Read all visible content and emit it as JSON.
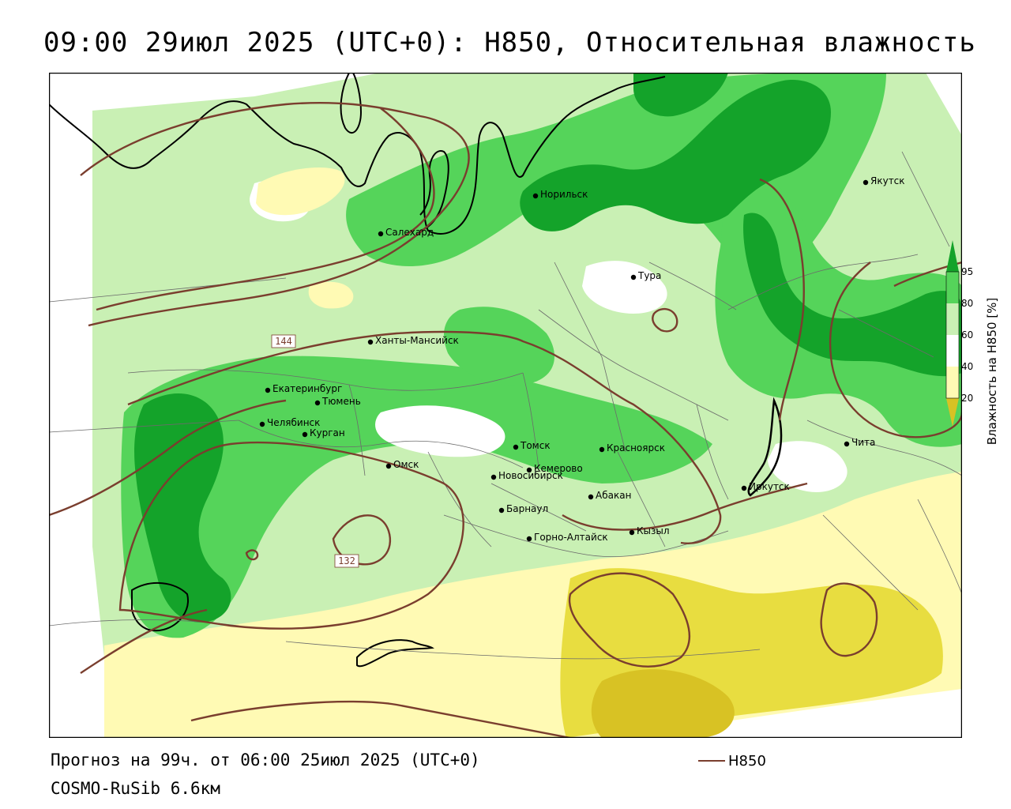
{
  "header": {
    "title": "09:00 29июл 2025 (UTC+0): H850, Относительная влажность"
  },
  "footer": {
    "forecast": "Прогноз на 99ч. от 06:00 25июл 2025 (UTC+0)",
    "model": "COSMO-RuSib 6.6км"
  },
  "legend": {
    "line_label": "H850",
    "line_color": "#7a3e2e"
  },
  "colorbar": {
    "title": "Влажность на H850 [%]",
    "ticks": [
      "20",
      "40",
      "60",
      "80",
      "95"
    ],
    "colors": {
      "below_20": "#d8c224",
      "r20_40": "#e8dd40",
      "r40_60": "#fffab4",
      "r60_80": "#c9f0b4",
      "r80_95": "#55d45a",
      "above_95": "#14a32a"
    }
  },
  "map": {
    "contour_labels": [
      "144",
      "132"
    ],
    "cities": [
      {
        "name": "Якутск"
      },
      {
        "name": "Норильск"
      },
      {
        "name": "Салехард"
      },
      {
        "name": "Тура"
      },
      {
        "name": "Ханты-Мансийск"
      },
      {
        "name": "Екатеринбург"
      },
      {
        "name": "Тюмень"
      },
      {
        "name": "Челябинск"
      },
      {
        "name": "Курган"
      },
      {
        "name": "Томск"
      },
      {
        "name": "Красноярск"
      },
      {
        "name": "Чита"
      },
      {
        "name": "Омск"
      },
      {
        "name": "Новосибирск"
      },
      {
        "name": "Кемерово"
      },
      {
        "name": "Иркутск"
      },
      {
        "name": "Абакан"
      },
      {
        "name": "Барнаул"
      },
      {
        "name": "Кызыл"
      },
      {
        "name": "Горно-Алтайск"
      }
    ]
  }
}
